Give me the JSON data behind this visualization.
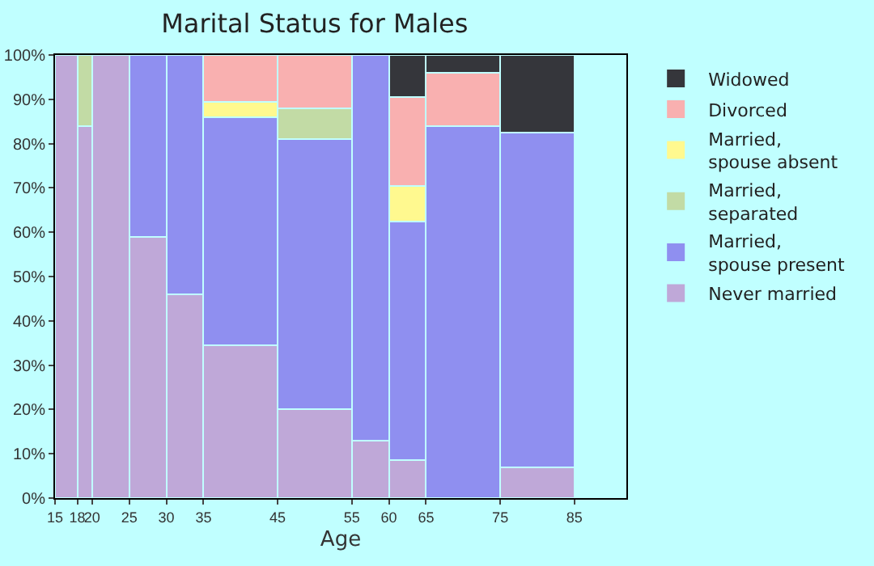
{
  "chart_data": {
    "type": "bar",
    "title": "Marital Status for Males",
    "xlabel": "Age",
    "stacked": true,
    "legend": "right",
    "grid": false,
    "x": [
      16.5,
      19,
      22.5,
      27.5,
      32.5,
      40,
      50,
      57.5,
      62.5,
      70,
      80
    ],
    "xlim": [
      15,
      92
    ],
    "xticks": [
      15,
      18,
      20,
      25,
      30,
      35,
      45,
      55,
      60,
      65,
      75,
      85
    ],
    "ylim": [
      0,
      100
    ],
    "yticks": [
      {
        "value": 0,
        "label": "0%"
      },
      {
        "value": 10,
        "label": "10%"
      },
      {
        "value": 20,
        "label": "20%"
      },
      {
        "value": 30,
        "label": "30%"
      },
      {
        "value": 40,
        "label": "40%"
      },
      {
        "value": 50,
        "label": "50%"
      },
      {
        "value": 60,
        "label": "60%"
      },
      {
        "value": 70,
        "label": "70%"
      },
      {
        "value": 80,
        "label": "80%"
      },
      {
        "value": 90,
        "label": "90%"
      },
      {
        "value": 100,
        "label": "100%"
      }
    ],
    "series": [
      {
        "name": "Never married",
        "color": "#bfa8d8",
        "values": [
          100,
          84,
          100,
          59,
          46,
          34.5,
          20,
          13,
          8.5,
          null,
          7
        ]
      },
      {
        "name": "Married, spouse present",
        "color": "#8f8ff0",
        "values": [
          null,
          null,
          null,
          41,
          54,
          51.5,
          61,
          87,
          54,
          84,
          75.5
        ]
      },
      {
        "name": "Married, separated",
        "color": "#c2dba5",
        "values": [
          null,
          16,
          null,
          null,
          null,
          null,
          7,
          null,
          null,
          null,
          null
        ]
      },
      {
        "name": "Married, spouse absent",
        "color": "#fff98f",
        "values": [
          null,
          null,
          null,
          null,
          null,
          3.5,
          null,
          null,
          8,
          null,
          null
        ]
      },
      {
        "name": "Divorced",
        "color": "#f9b0b0",
        "values": [
          null,
          null,
          null,
          null,
          null,
          10.5,
          12,
          null,
          20,
          12,
          null
        ]
      },
      {
        "name": "Widowed",
        "color": "#35363b",
        "values": [
          null,
          null,
          null,
          null,
          null,
          null,
          null,
          null,
          9.5,
          4,
          17.5
        ]
      }
    ]
  }
}
